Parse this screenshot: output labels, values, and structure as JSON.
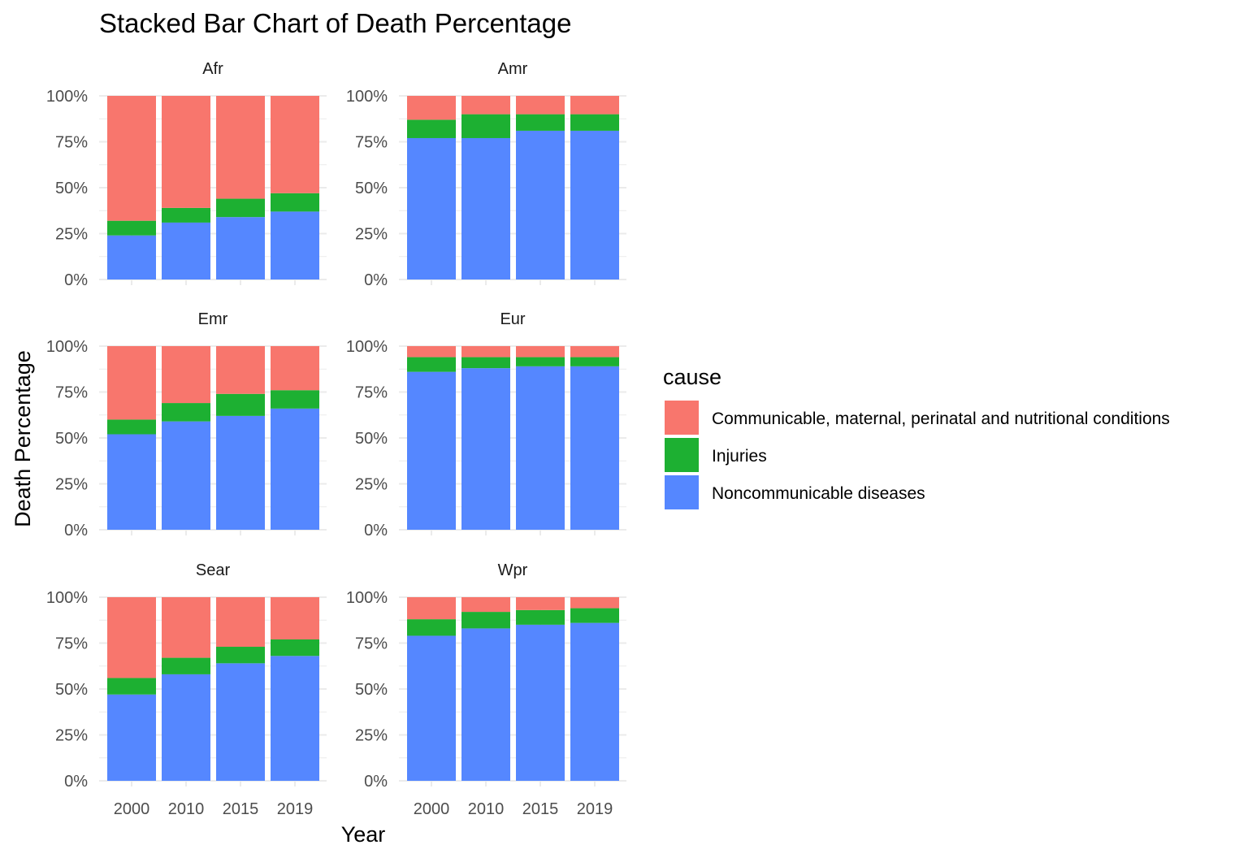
{
  "chart_data": {
    "type": "bar",
    "stacked": true,
    "title": "Stacked Bar Chart of Death Percentage",
    "xlabel": "Year",
    "ylabel": "Death Percentage",
    "categories": [
      "2000",
      "2010",
      "2015",
      "2019"
    ],
    "ylim": [
      0,
      1
    ],
    "y_ticks": [
      "0%",
      "25%",
      "50%",
      "75%",
      "100%"
    ],
    "grid": true,
    "legend": {
      "title": "cause",
      "placement": "right",
      "entries": [
        {
          "name": "Communicable, maternal, perinatal and nutritional conditions",
          "color": "#F8766D"
        },
        {
          "name": "Injuries",
          "color": "#1DB032"
        },
        {
          "name": "Noncommunicable diseases",
          "color": "#5587FF"
        }
      ]
    },
    "stack_order_bottom_to_top": [
      "Noncommunicable diseases",
      "Injuries",
      "Communicable, maternal, perinatal and nutritional conditions"
    ],
    "panels": [
      {
        "name": "Afr",
        "series": [
          {
            "name": "Noncommunicable diseases",
            "values": [
              0.24,
              0.31,
              0.34,
              0.37
            ]
          },
          {
            "name": "Injuries",
            "values": [
              0.08,
              0.08,
              0.1,
              0.1
            ]
          },
          {
            "name": "Communicable, maternal, perinatal and nutritional conditions",
            "values": [
              0.68,
              0.61,
              0.56,
              0.53
            ]
          }
        ]
      },
      {
        "name": "Amr",
        "series": [
          {
            "name": "Noncommunicable diseases",
            "values": [
              0.77,
              0.77,
              0.81,
              0.81
            ]
          },
          {
            "name": "Injuries",
            "values": [
              0.1,
              0.13,
              0.09,
              0.09
            ]
          },
          {
            "name": "Communicable, maternal, perinatal and nutritional conditions",
            "values": [
              0.13,
              0.1,
              0.1,
              0.1
            ]
          }
        ]
      },
      {
        "name": "Emr",
        "series": [
          {
            "name": "Noncommunicable diseases",
            "values": [
              0.52,
              0.59,
              0.62,
              0.66
            ]
          },
          {
            "name": "Injuries",
            "values": [
              0.08,
              0.1,
              0.12,
              0.1
            ]
          },
          {
            "name": "Communicable, maternal, perinatal and nutritional conditions",
            "values": [
              0.4,
              0.31,
              0.26,
              0.24
            ]
          }
        ]
      },
      {
        "name": "Eur",
        "series": [
          {
            "name": "Noncommunicable diseases",
            "values": [
              0.86,
              0.88,
              0.89,
              0.89
            ]
          },
          {
            "name": "Injuries",
            "values": [
              0.08,
              0.06,
              0.05,
              0.05
            ]
          },
          {
            "name": "Communicable, maternal, perinatal and nutritional conditions",
            "values": [
              0.06,
              0.06,
              0.06,
              0.06
            ]
          }
        ]
      },
      {
        "name": "Sear",
        "series": [
          {
            "name": "Noncommunicable diseases",
            "values": [
              0.47,
              0.58,
              0.64,
              0.68
            ]
          },
          {
            "name": "Injuries",
            "values": [
              0.09,
              0.09,
              0.09,
              0.09
            ]
          },
          {
            "name": "Communicable, maternal, perinatal and nutritional conditions",
            "values": [
              0.44,
              0.33,
              0.27,
              0.23
            ]
          }
        ]
      },
      {
        "name": "Wpr",
        "series": [
          {
            "name": "Noncommunicable diseases",
            "values": [
              0.79,
              0.83,
              0.85,
              0.86
            ]
          },
          {
            "name": "Injuries",
            "values": [
              0.09,
              0.09,
              0.08,
              0.08
            ]
          },
          {
            "name": "Communicable, maternal, perinatal and nutritional conditions",
            "values": [
              0.12,
              0.08,
              0.07,
              0.06
            ]
          }
        ]
      }
    ]
  }
}
